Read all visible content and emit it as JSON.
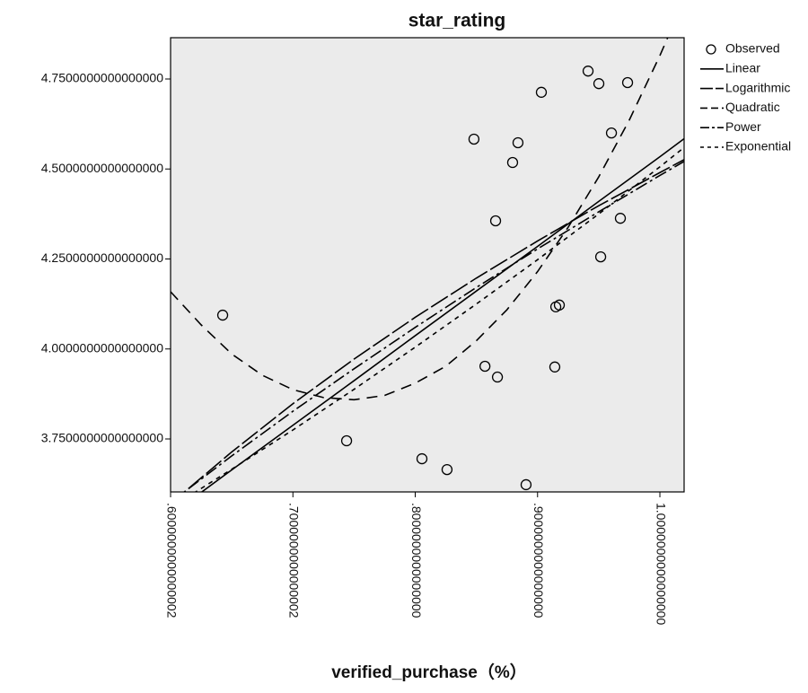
{
  "chart_data": {
    "type": "scatter",
    "title": "star_rating",
    "x_label": "verified_purchase（%）",
    "xlim": [
      0.6,
      1.0198
    ],
    "ylim": [
      3.6029,
      4.8647
    ],
    "xticks": [
      {
        "value": 0.6,
        "label": ".6000000000000002"
      },
      {
        "value": 0.7,
        "label": ".7000000000000002"
      },
      {
        "value": 0.8,
        "label": ".8000000000000000"
      },
      {
        "value": 0.9,
        "label": ".9000000000000000"
      },
      {
        "value": 1.0,
        "label": "1.0000000000000000"
      }
    ],
    "yticks": [
      {
        "value": 3.75,
        "label": "3.7500000000000000"
      },
      {
        "value": 4.0,
        "label": "4.0000000000000000"
      },
      {
        "value": 4.25,
        "label": "4.2500000000000000"
      },
      {
        "value": 4.5,
        "label": "4.5000000000000000"
      },
      {
        "value": 4.75,
        "label": "4.7500000000000000"
      }
    ],
    "series": [
      {
        "name": "Observed",
        "style": "circle",
        "color": "#000000",
        "x": [
          0.6426,
          0.7439,
          0.8055,
          0.826,
          0.848,
          0.857,
          0.8657,
          0.8672,
          0.8796,
          0.884,
          0.8906,
          0.9031,
          0.9141,
          0.9149,
          0.9178,
          0.9413,
          0.9501,
          0.9516,
          0.9604,
          0.9677,
          0.9736
        ],
        "values": [
          4.094,
          3.745,
          3.695,
          3.665,
          4.583,
          3.952,
          4.356,
          3.922,
          4.518,
          4.573,
          3.623,
          4.713,
          3.95,
          4.117,
          4.122,
          4.772,
          4.737,
          4.256,
          4.6,
          4.363,
          4.74
        ]
      },
      {
        "name": "Linear",
        "style": "solid",
        "color": "#000000",
        "x": [
          0.6,
          0.65,
          0.7,
          0.75,
          0.8,
          0.85,
          0.9,
          0.95,
          1.0,
          1.0198
        ],
        "values": [
          3.539,
          3.664,
          3.788,
          3.912,
          4.037,
          4.161,
          4.285,
          4.41,
          4.534,
          4.584
        ]
      },
      {
        "name": "Logarithmic",
        "style": "long-dash",
        "color": "#000000",
        "x": [
          0.6,
          0.65,
          0.7,
          0.75,
          0.8,
          0.85,
          0.9,
          0.95,
          1.0,
          1.0198
        ],
        "values": [
          3.57,
          3.714,
          3.848,
          3.972,
          4.088,
          4.197,
          4.3,
          4.398,
          4.49,
          4.526
        ]
      },
      {
        "name": "Quadratic",
        "style": "dash",
        "color": "#000000",
        "x": [
          0.6,
          0.625,
          0.65,
          0.675,
          0.7,
          0.725,
          0.75,
          0.775,
          0.8,
          0.825,
          0.85,
          0.875,
          0.9,
          0.925,
          0.95,
          0.975,
          1.0,
          1.0198
        ],
        "values": [
          4.159,
          4.067,
          3.986,
          3.927,
          3.887,
          3.865,
          3.859,
          3.871,
          3.905,
          3.952,
          4.023,
          4.109,
          4.215,
          4.338,
          4.478,
          4.636,
          4.815,
          4.97
        ]
      },
      {
        "name": "Power",
        "style": "dash-dot",
        "color": "#000000",
        "x": [
          0.6,
          0.65,
          0.7,
          0.75,
          0.8,
          0.85,
          0.9,
          0.95,
          1.0,
          1.0198
        ],
        "values": [
          3.574,
          3.703,
          3.827,
          3.945,
          4.06,
          4.171,
          4.278,
          4.381,
          4.482,
          4.521
        ]
      },
      {
        "name": "Exponential",
        "style": "short-dash",
        "color": "#000000",
        "x": [
          0.6,
          0.65,
          0.7,
          0.75,
          0.8,
          0.85,
          0.9,
          0.95,
          1.0,
          1.0198
        ],
        "values": [
          3.559,
          3.666,
          3.775,
          3.888,
          4.005,
          4.125,
          4.248,
          4.375,
          4.506,
          4.56
        ]
      }
    ]
  }
}
